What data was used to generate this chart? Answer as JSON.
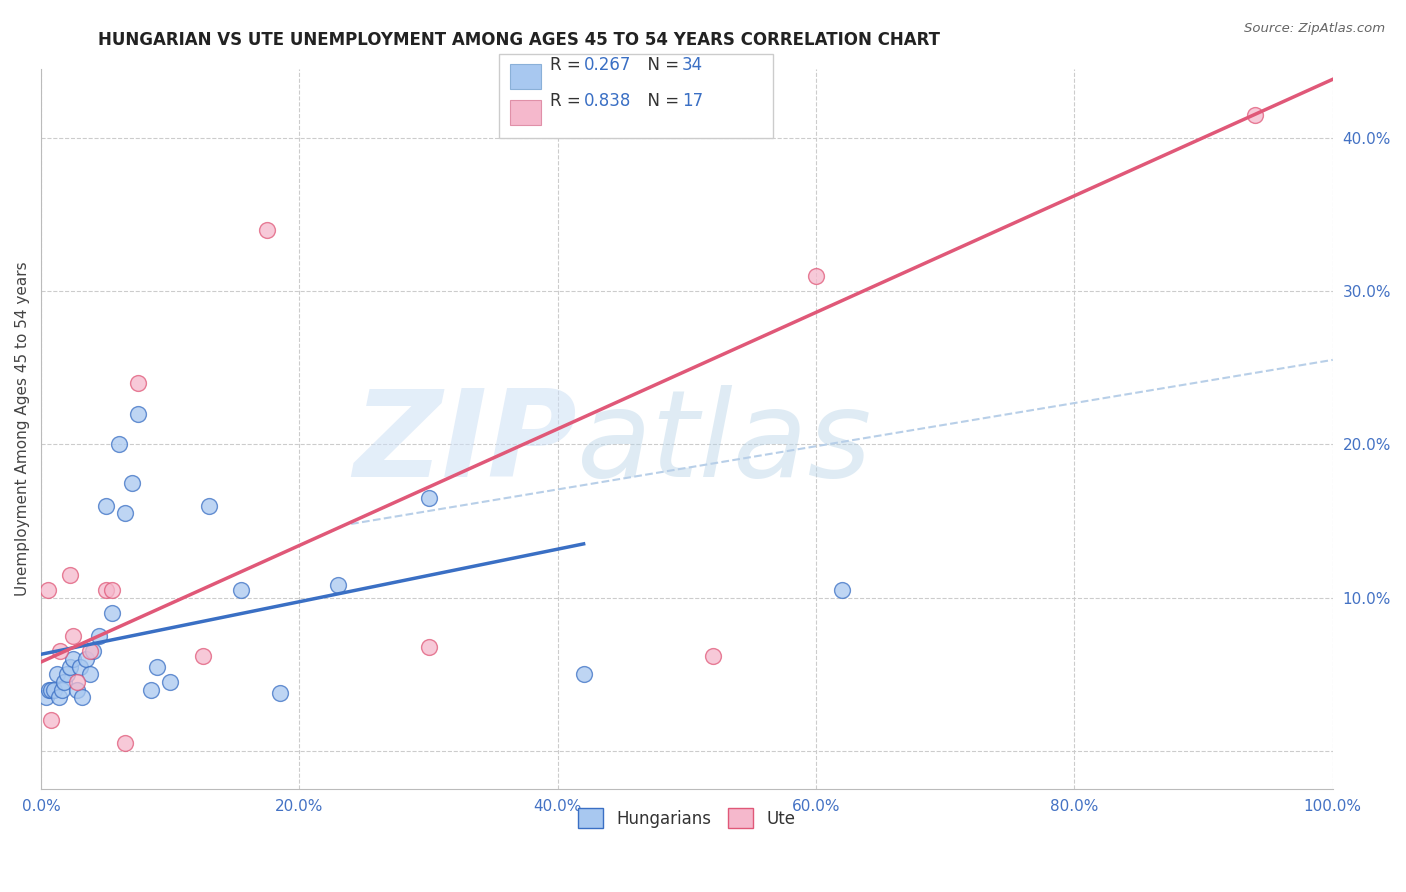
{
  "title": "HUNGARIAN VS UTE UNEMPLOYMENT AMONG AGES 45 TO 54 YEARS CORRELATION CHART",
  "source": "Source: ZipAtlas.com",
  "ylabel": "Unemployment Among Ages 45 to 54 years",
  "background_color": "#ffffff",
  "grid_color": "#cccccc",
  "watermark_zip": "ZIP",
  "watermark_atlas": "atlas",
  "blue_color": "#a8c8f0",
  "pink_color": "#f5b8cc",
  "blue_line_color": "#3a6fc4",
  "pink_line_color": "#e05878",
  "dashed_line_color": "#b8cfe8",
  "xmin": 0.0,
  "xmax": 1.0,
  "ymin": -0.025,
  "ymax": 0.445,
  "yticks": [
    0.0,
    0.1,
    0.2,
    0.3,
    0.4
  ],
  "ytick_labels": [
    "",
    "10.0%",
    "20.0%",
    "30.0%",
    "40.0%"
  ],
  "xticks": [
    0.0,
    0.2,
    0.4,
    0.6,
    0.8,
    1.0
  ],
  "xtick_labels": [
    "0.0%",
    "20.0%",
    "40.0%",
    "60.0%",
    "80.0%",
    "100.0%"
  ],
  "blue_scatter_x": [
    0.004,
    0.006,
    0.008,
    0.01,
    0.012,
    0.014,
    0.016,
    0.018,
    0.02,
    0.022,
    0.025,
    0.028,
    0.03,
    0.032,
    0.035,
    0.038,
    0.04,
    0.045,
    0.05,
    0.055,
    0.06,
    0.065,
    0.07,
    0.075,
    0.085,
    0.09,
    0.1,
    0.13,
    0.155,
    0.185,
    0.23,
    0.3,
    0.42,
    0.62
  ],
  "blue_scatter_y": [
    0.035,
    0.04,
    0.04,
    0.04,
    0.05,
    0.035,
    0.04,
    0.045,
    0.05,
    0.055,
    0.06,
    0.04,
    0.055,
    0.035,
    0.06,
    0.05,
    0.065,
    0.075,
    0.16,
    0.09,
    0.2,
    0.155,
    0.175,
    0.22,
    0.04,
    0.055,
    0.045,
    0.16,
    0.105,
    0.038,
    0.108,
    0.165,
    0.05,
    0.105
  ],
  "pink_scatter_x": [
    0.005,
    0.008,
    0.015,
    0.022,
    0.025,
    0.028,
    0.038,
    0.05,
    0.055,
    0.065,
    0.075,
    0.125,
    0.175,
    0.3,
    0.52,
    0.6,
    0.94
  ],
  "pink_scatter_y": [
    0.105,
    0.02,
    0.065,
    0.115,
    0.075,
    0.045,
    0.065,
    0.105,
    0.105,
    0.005,
    0.24,
    0.062,
    0.34,
    0.068,
    0.062,
    0.31,
    0.415
  ],
  "blue_line_x": [
    0.0,
    0.42
  ],
  "blue_line_y": [
    0.063,
    0.135
  ],
  "pink_line_x": [
    0.0,
    1.0
  ],
  "pink_line_y": [
    0.058,
    0.438
  ],
  "dashed_line_x": [
    0.24,
    1.0
  ],
  "dashed_line_y": [
    0.148,
    0.255
  ]
}
